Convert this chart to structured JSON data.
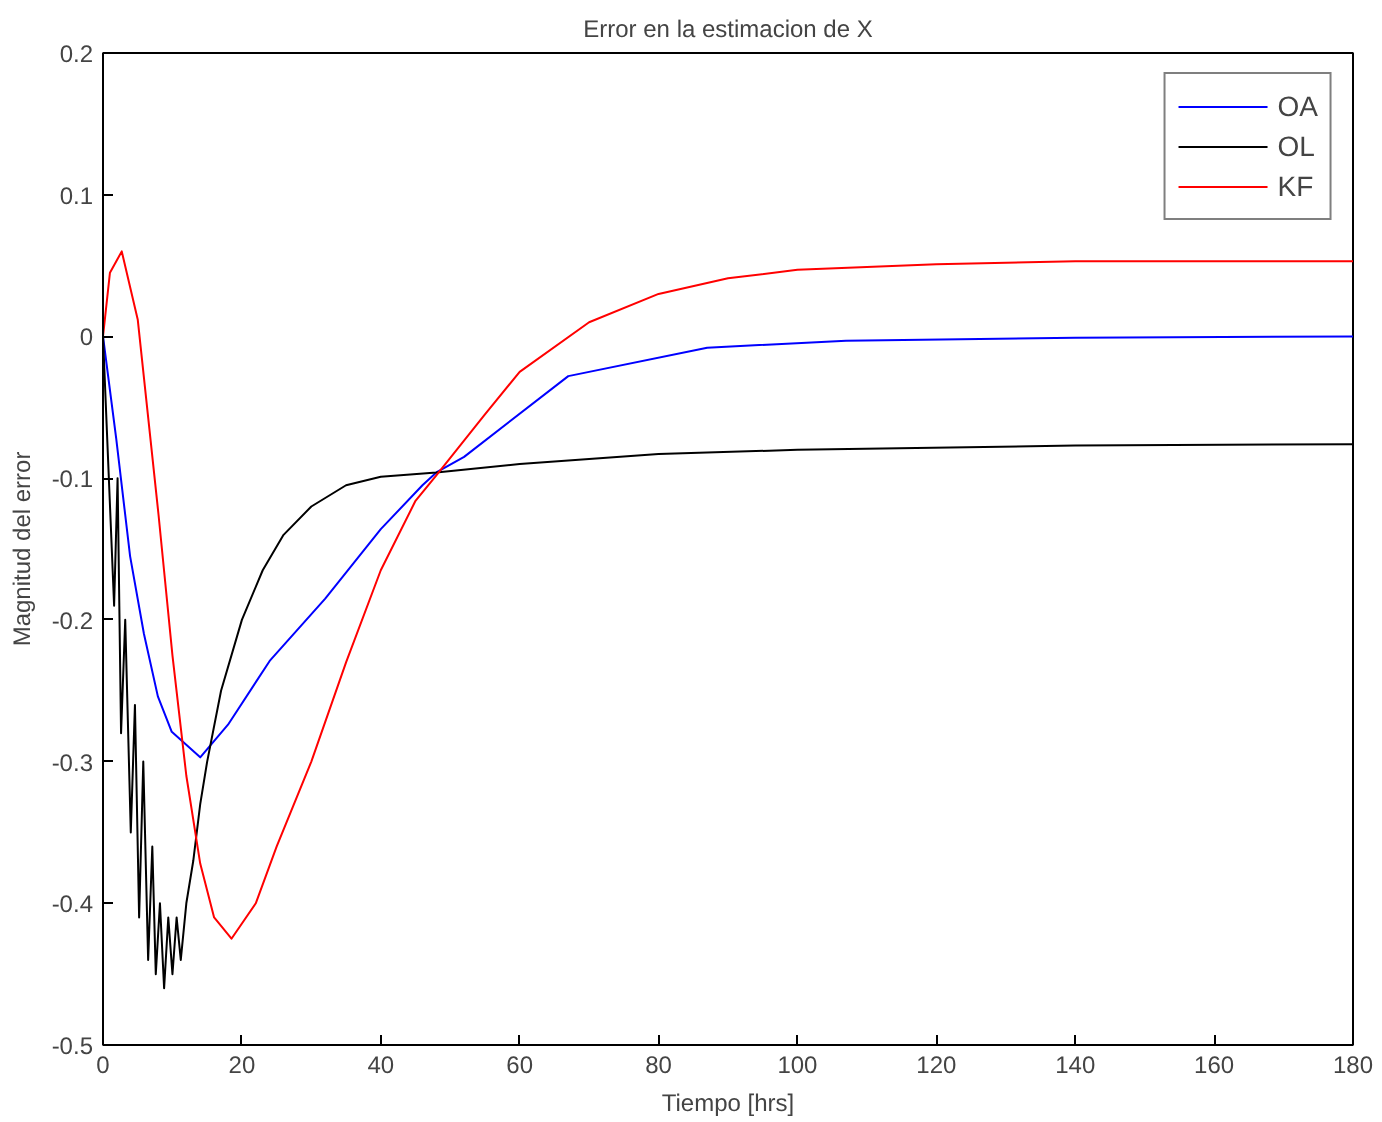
{
  "chart_data": {
    "type": "line",
    "title": "Error en la estimacion de X",
    "xlabel": "Tiempo [hrs]",
    "ylabel": "Magnitud del error",
    "xlim": [
      0,
      180
    ],
    "ylim": [
      -0.5,
      0.2
    ],
    "xticks": [
      0,
      20,
      40,
      60,
      80,
      100,
      120,
      140,
      160,
      180
    ],
    "yticks": [
      -0.5,
      -0.4,
      -0.3,
      -0.2,
      -0.1,
      0,
      0.1,
      0.2
    ],
    "grid": false,
    "legend": "top right",
    "line_style": "solid",
    "series": [
      {
        "name": "OA",
        "color": "#0000ff",
        "x": [
          0,
          1.9,
          3.9,
          5.9,
          7.9,
          9.9,
          14,
          18,
          24,
          32,
          40,
          46,
          48,
          52,
          67,
          87,
          107,
          140,
          180
        ],
        "values": [
          0,
          -0.072,
          -0.155,
          -0.21,
          -0.254,
          -0.279,
          -0.297,
          -0.274,
          -0.229,
          -0.185,
          -0.136,
          -0.105,
          -0.096,
          -0.085,
          -0.028,
          -0.008,
          -0.003,
          -0.001,
          0
        ]
      },
      {
        "name": "OL",
        "color": "#000000",
        "x": [
          0,
          1.6,
          2.1,
          2.6,
          3.2,
          4.0,
          4.6,
          5.2,
          5.8,
          6.5,
          7.1,
          7.6,
          8.2,
          8.8,
          9.4,
          10.0,
          10.6,
          11.2,
          12,
          13,
          14,
          15,
          17,
          20,
          23,
          26,
          30,
          35,
          40,
          48,
          60,
          80,
          100,
          140,
          180
        ],
        "values": [
          0,
          -0.19,
          -0.1,
          -0.28,
          -0.2,
          -0.35,
          -0.26,
          -0.41,
          -0.3,
          -0.44,
          -0.36,
          -0.45,
          -0.4,
          -0.46,
          -0.41,
          -0.45,
          -0.41,
          -0.44,
          -0.4,
          -0.37,
          -0.33,
          -0.3,
          -0.25,
          -0.2,
          -0.165,
          -0.14,
          -0.12,
          -0.105,
          -0.099,
          -0.096,
          -0.09,
          -0.083,
          -0.08,
          -0.077,
          -0.076
        ]
      },
      {
        "name": "KF",
        "color": "#ff0000",
        "x": [
          0,
          1,
          2.7,
          5,
          8,
          10,
          12,
          14,
          16,
          18.5,
          22,
          25,
          30,
          35,
          40,
          45,
          48,
          55,
          60,
          70,
          80,
          90,
          100,
          120,
          140,
          180
        ],
        "values": [
          0,
          0.045,
          0.06,
          0.012,
          -0.126,
          -0.225,
          -0.31,
          -0.372,
          -0.41,
          -0.425,
          -0.4,
          -0.36,
          -0.3,
          -0.23,
          -0.165,
          -0.116,
          -0.098,
          -0.055,
          -0.025,
          0.01,
          0.03,
          0.041,
          0.047,
          0.051,
          0.053,
          0.053
        ]
      }
    ]
  }
}
